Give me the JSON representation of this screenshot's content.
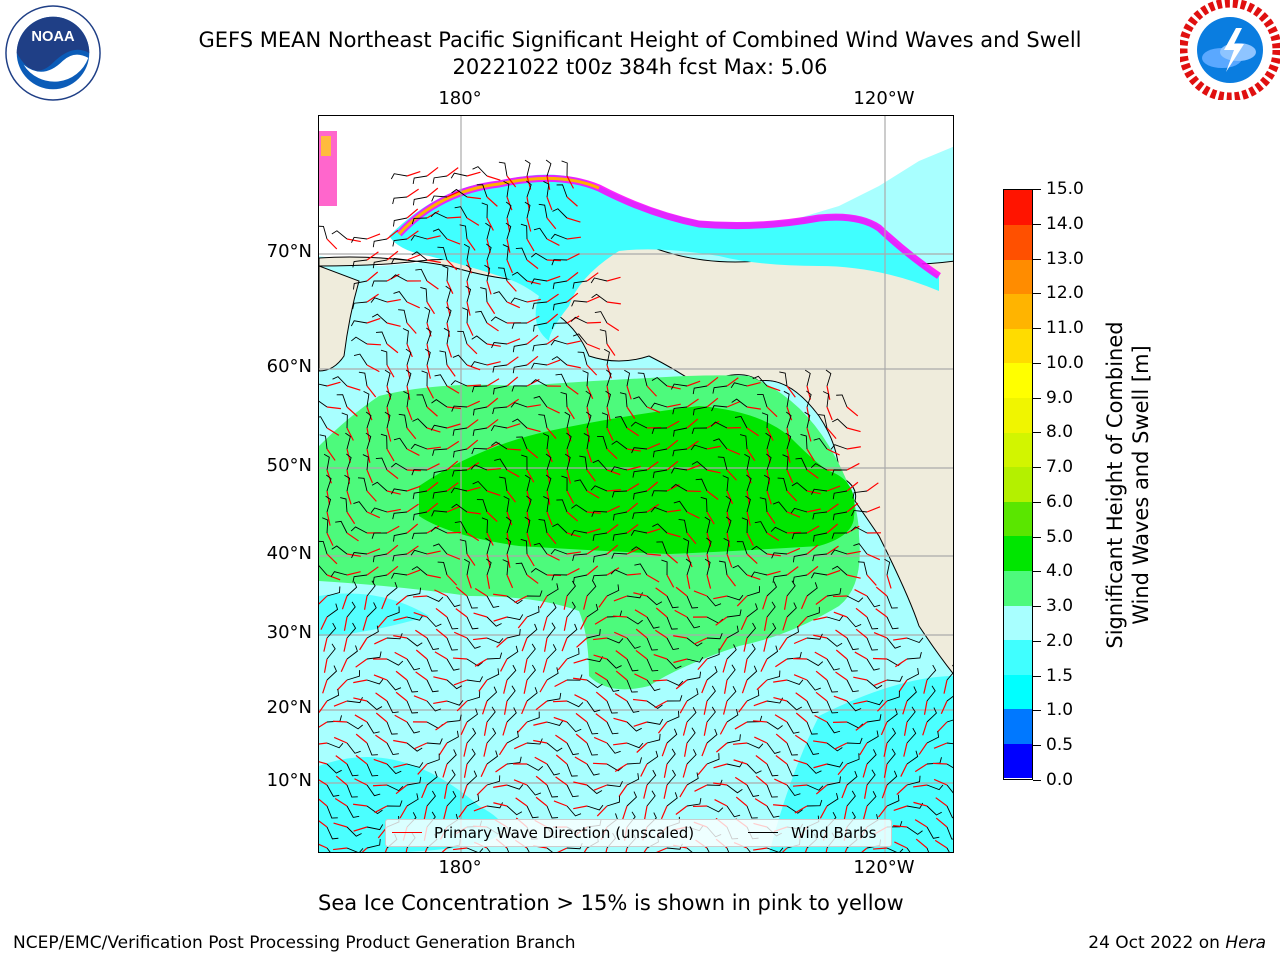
{
  "title_line1": "GEFS MEAN Northeast Pacific Significant Height of Combined Wind Waves and Swell",
  "title_line2": "20221022 t00z 384h fcst   Max: 5.06",
  "subtitle": "Sea Ice Concentration > 15% is shown in pink to yellow",
  "footer_left": "NCEP/EMC/Verification Post Processing Product Generation Branch",
  "footer_right_date": "24 Oct 2022 on ",
  "footer_right_host": "Hera",
  "logos": {
    "noaa_text": "NOAA"
  },
  "chart_data": {
    "type": "heatmap",
    "variable": "Significant Height of Combined Wind Waves and Swell",
    "colorbar_label_line1": "Significant Height of Combined",
    "colorbar_label_line2": "Wind Waves and Swell [m]",
    "max_value": 5.06,
    "colorbar_levels": [
      0.0,
      0.5,
      1.0,
      1.5,
      2.0,
      3.0,
      4.0,
      5.0,
      6.0,
      7.0,
      8.0,
      9.0,
      10.0,
      11.0,
      12.0,
      13.0,
      14.0,
      15.0
    ],
    "colorbar_tick_labels": [
      "0.0",
      "0.5",
      "1.0",
      "1.5",
      "2.0",
      "3.0",
      "4.0",
      "5.0",
      "6.0",
      "7.0",
      "8.0",
      "9.0",
      "10.0",
      "11.0",
      "12.0",
      "13.0",
      "14.0",
      "15.0"
    ],
    "colorbar_colors": [
      "#0000ff",
      "#0078ff",
      "#00ffff",
      "#40ffff",
      "#a8ffff",
      "#4dfa7c",
      "#00e600",
      "#5ae600",
      "#b4f000",
      "#d2f500",
      "#f0f500",
      "#ffff00",
      "#ffdc00",
      "#ffb400",
      "#ff8c00",
      "#ff5000",
      "#ff1400"
    ],
    "lat_labels": [
      "70°N",
      "60°N",
      "50°N",
      "40°N",
      "30°N",
      "20°N",
      "10°N"
    ],
    "lat_values": [
      70,
      60,
      50,
      40,
      30,
      20,
      10
    ],
    "lon_labels": [
      "180°",
      "120°W"
    ],
    "lon_values": [
      180,
      -120
    ],
    "legend": {
      "wave_label": "Primary Wave Direction (unscaled)",
      "wind_label": "Wind Barbs",
      "wave_color": "#ff0000",
      "wind_color": "#000000"
    },
    "land_color": "#efecdc",
    "sea_ice_colors": [
      "#ff00ff",
      "#ff66cc",
      "#ffb000",
      "#ffe000"
    ]
  }
}
